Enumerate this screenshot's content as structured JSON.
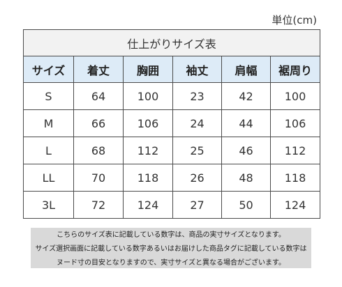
{
  "unit_label": "単位(cm)",
  "table": {
    "title": "仕上がりサイズ表",
    "headers": [
      "サイズ",
      "着丈",
      "胸囲",
      "袖丈",
      "肩幅",
      "裾周り"
    ],
    "rows": [
      [
        "S",
        "64",
        "100",
        "23",
        "42",
        "100"
      ],
      [
        "M",
        "66",
        "106",
        "24",
        "44",
        "106"
      ],
      [
        "L",
        "68",
        "112",
        "25",
        "46",
        "112"
      ],
      [
        "LL",
        "70",
        "118",
        "26",
        "48",
        "118"
      ],
      [
        "3L",
        "72",
        "124",
        "27",
        "50",
        "124"
      ]
    ]
  },
  "note_lines": [
    "こちらのサイズ表に記載している数字は、商品の実寸サイズとなります。",
    "サイズ選択画面に記載している数字あるいはお届けした商品タグに記載している数字は",
    "ヌード寸の目安となりますので、実寸サイズと異なる場合がございます。"
  ]
}
